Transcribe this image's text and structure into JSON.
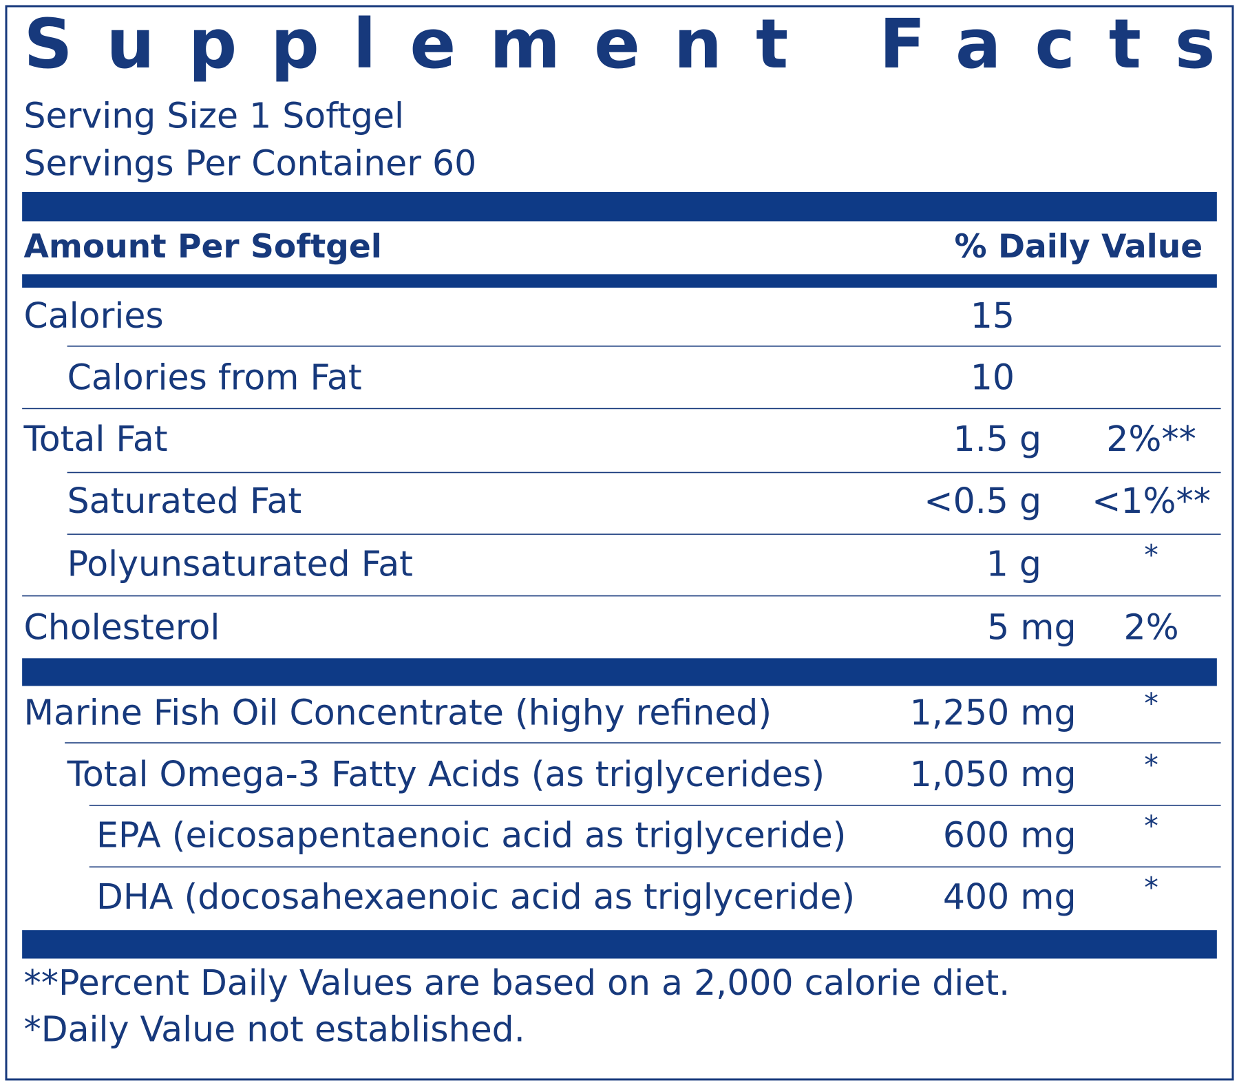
{
  "title": "Supplement Facts",
  "serving_size": "Serving Size 1 Softgel",
  "servings_per_container": "Servings Per Container 60",
  "header": {
    "amount": "Amount Per Softgel",
    "daily_value": "% Daily Value"
  },
  "rows": [
    {
      "name": "Calories",
      "amount": "15"
    },
    {
      "name": "Calories from Fat",
      "amount": "10"
    },
    {
      "name": "Total Fat",
      "amount": "1.5 g",
      "dv": "2%**"
    },
    {
      "name": "Saturated Fat",
      "amount": "<0.5 g",
      "dv": "<1%**"
    },
    {
      "name": "Polyunsaturated Fat",
      "amount": "1 g",
      "dv": "*"
    },
    {
      "name": "Cholesterol",
      "amount": "5 mg",
      "dv": "2%"
    },
    {
      "name": "Marine Fish Oil Concentrate (highy refined)",
      "amount": "1,250 mg",
      "dv": "*"
    },
    {
      "name": "Total Omega-3 Fatty Acids (as triglycerides)",
      "amount": "1,050 mg",
      "dv": "*"
    },
    {
      "name": "EPA (eicosapentaenoic acid as triglyceride)",
      "amount": "600 mg",
      "dv": "*"
    },
    {
      "name": "DHA (docosahexaenoic acid as triglyceride)",
      "amount": "400 mg",
      "dv": "*"
    }
  ],
  "footnotes": [
    "**Percent Daily Values are based on a 2,000 calorie diet.",
    "*Daily Value not established."
  ]
}
